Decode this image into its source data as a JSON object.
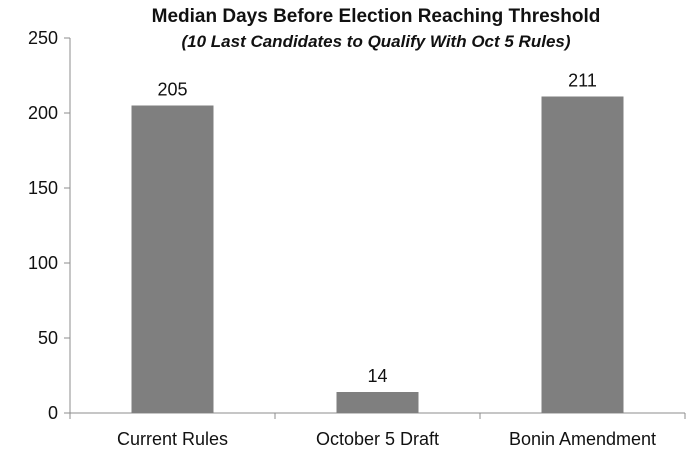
{
  "chart_data": {
    "type": "bar",
    "title": "Median Days Before Election Reaching Threshold",
    "subtitle": "(10 Last Candidates to Qualify With Oct 5 Rules)",
    "categories": [
      "Current Rules",
      "October 5 Draft",
      "Bonin Amendment"
    ],
    "values": [
      205,
      14,
      211
    ],
    "data_labels": [
      "205",
      "14",
      "211"
    ],
    "ylim": [
      0,
      250
    ],
    "yticks": [
      0,
      50,
      100,
      150,
      200,
      250
    ],
    "ytick_labels": [
      "0",
      "50",
      "100",
      "150",
      "200",
      "250"
    ],
    "xlabel": "",
    "ylabel": "",
    "grid": false,
    "legend": "none",
    "colors": {
      "bar": "#7f7f7f",
      "axis": "#8c8c8c"
    }
  }
}
